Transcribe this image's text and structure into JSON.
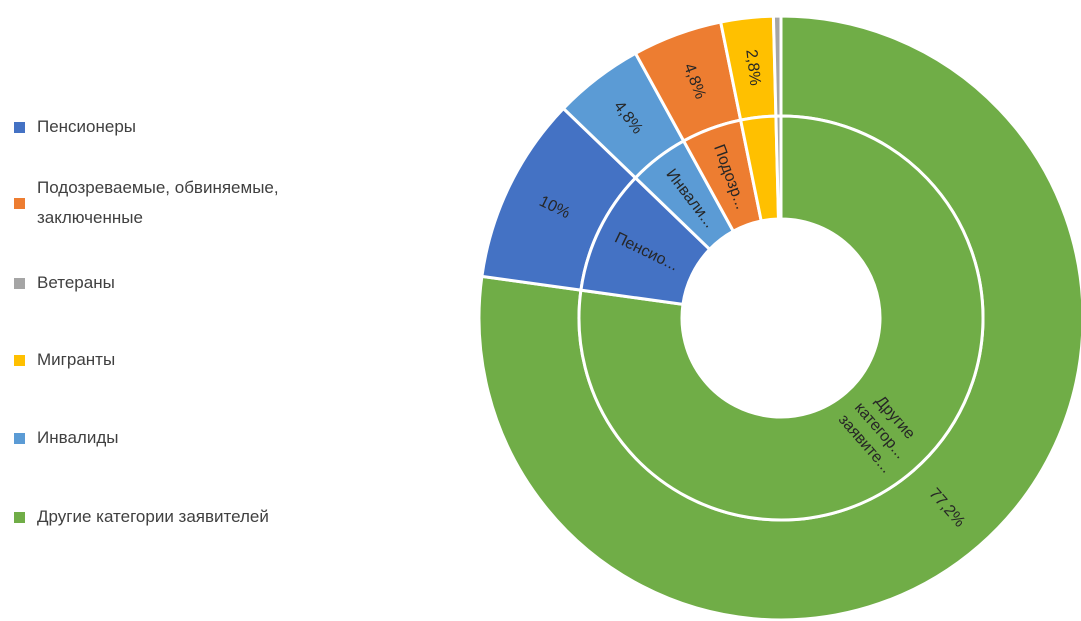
{
  "chart_data": {
    "type": "sunburst",
    "legend": [
      {
        "name": "Пенсионеры",
        "color": "#4472c4"
      },
      {
        "name": "Подозреваемые,  обвиняемые, заключенные",
        "color": "#ed7d31"
      },
      {
        "name": "Ветераны",
        "color": "#a5a5a5"
      },
      {
        "name": "Мигранты",
        "color": "#ffc000"
      },
      {
        "name": "Инвалиды",
        "color": "#5b9bd5"
      },
      {
        "name": "Другие категории заявителей",
        "color": "#70ad47"
      }
    ],
    "slices": [
      {
        "color": "#70ad47",
        "value": 77.2,
        "value_label": "77,2%",
        "inner_label": "Другие категор... заявите..."
      },
      {
        "color": "#4472c4",
        "value": 10,
        "value_label": "10%",
        "inner_label": "Пенсио..."
      },
      {
        "color": "#5b9bd5",
        "value": 4.8,
        "value_label": "4,8%",
        "inner_label": "Инвали..."
      },
      {
        "color": "#ed7d31",
        "value": 4.8,
        "value_label": "4,8%",
        "inner_label": "Подозр..."
      },
      {
        "color": "#ffc000",
        "value": 2.8,
        "value_label": "2,8%",
        "inner_label": null
      },
      {
        "color": "#a5a5a5",
        "value": 0.4,
        "value_label": null,
        "inner_label": null
      }
    ]
  }
}
